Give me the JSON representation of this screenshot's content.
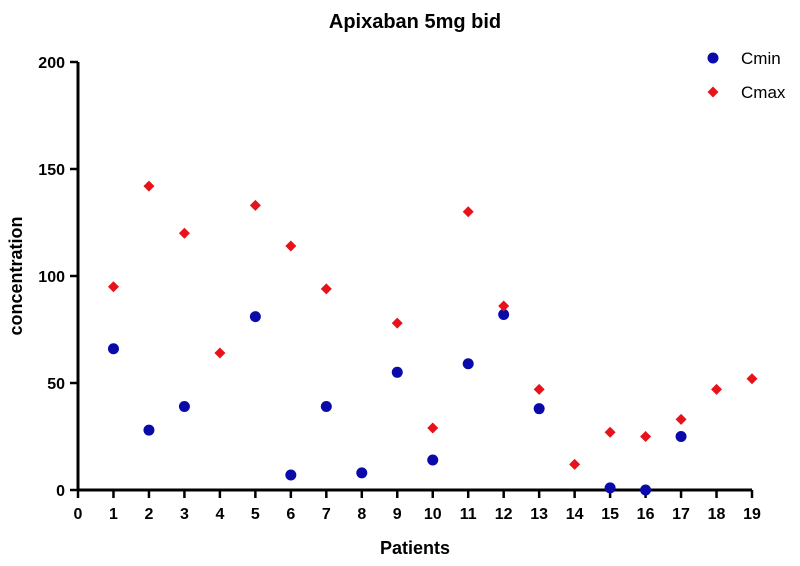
{
  "chart_data": {
    "type": "scatter",
    "title": "Apixaban 5mg bid",
    "xlabel": "Patients",
    "ylabel": "concentration",
    "xlim": [
      0,
      19
    ],
    "ylim": [
      0,
      200
    ],
    "x_ticks": [
      0,
      1,
      2,
      3,
      4,
      5,
      6,
      7,
      8,
      9,
      10,
      11,
      12,
      13,
      14,
      15,
      16,
      17,
      18,
      19
    ],
    "y_ticks": [
      0,
      50,
      100,
      150,
      200
    ],
    "grid": false,
    "legend_position": "top-right",
    "series": [
      {
        "name": "Cmin",
        "marker": "circle",
        "color": "#0a0aaa",
        "points": [
          {
            "x": 1,
            "y": 66
          },
          {
            "x": 2,
            "y": 28
          },
          {
            "x": 3,
            "y": 39
          },
          {
            "x": 5,
            "y": 81
          },
          {
            "x": 6,
            "y": 7
          },
          {
            "x": 7,
            "y": 39
          },
          {
            "x": 8,
            "y": 8
          },
          {
            "x": 9,
            "y": 55
          },
          {
            "x": 10,
            "y": 14
          },
          {
            "x": 11,
            "y": 59
          },
          {
            "x": 12,
            "y": 82
          },
          {
            "x": 13,
            "y": 38
          },
          {
            "x": 15,
            "y": 1
          },
          {
            "x": 16,
            "y": 0
          },
          {
            "x": 17,
            "y": 25
          }
        ]
      },
      {
        "name": "Cmax",
        "marker": "diamond",
        "color": "#e8121a",
        "points": [
          {
            "x": 1,
            "y": 95
          },
          {
            "x": 2,
            "y": 142
          },
          {
            "x": 3,
            "y": 120
          },
          {
            "x": 4,
            "y": 64
          },
          {
            "x": 5,
            "y": 133
          },
          {
            "x": 6,
            "y": 114
          },
          {
            "x": 7,
            "y": 94
          },
          {
            "x": 9,
            "y": 78
          },
          {
            "x": 10,
            "y": 29
          },
          {
            "x": 11,
            "y": 130
          },
          {
            "x": 12,
            "y": 86
          },
          {
            "x": 13,
            "y": 47
          },
          {
            "x": 14,
            "y": 12
          },
          {
            "x": 15,
            "y": 27
          },
          {
            "x": 16,
            "y": 25
          },
          {
            "x": 17,
            "y": 33
          },
          {
            "x": 18,
            "y": 47
          },
          {
            "x": 19,
            "y": 52
          }
        ]
      }
    ]
  }
}
